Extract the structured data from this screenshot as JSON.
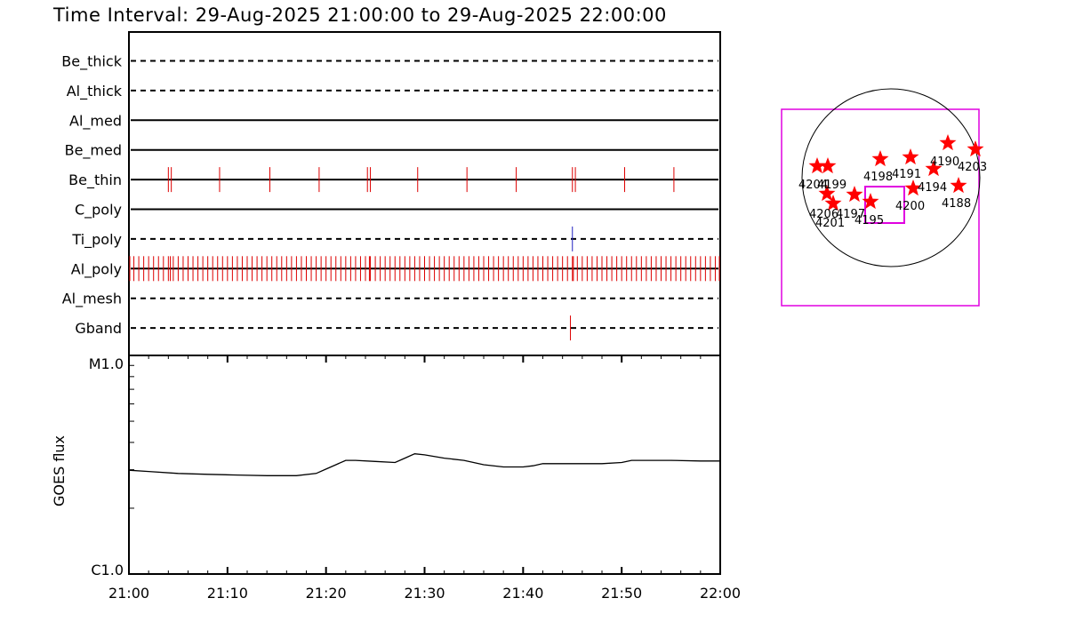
{
  "title": "Time Interval: 29-Aug-2025 21:00:00 to 29-Aug-2025 22:00:00",
  "colors": {
    "event": "#dd0000",
    "ti_event": "#2020c0",
    "box": "#e000e0",
    "star": "#ff0000"
  },
  "chart_data": [
    {
      "type": "timeline",
      "time_range": [
        "21:00",
        "22:00"
      ],
      "filters": [
        {
          "name": "Be_thick",
          "style": "dashed",
          "events": [],
          "color": ""
        },
        {
          "name": "Al_thick",
          "style": "dashed",
          "events": [],
          "color": ""
        },
        {
          "name": "Al_med",
          "style": "solid",
          "events": [],
          "color": ""
        },
        {
          "name": "Be_med",
          "style": "solid",
          "events": [],
          "color": ""
        },
        {
          "name": "Be_thin",
          "style": "solid",
          "color": "#dd0000",
          "events": [
            4.0,
            4.3,
            9.2,
            14.3,
            19.3,
            24.2,
            24.5,
            29.3,
            34.3,
            39.3,
            45.0,
            45.3,
            50.3,
            55.3
          ]
        },
        {
          "name": "C_poly",
          "style": "solid",
          "events": [],
          "color": ""
        },
        {
          "name": "Ti_poly",
          "style": "dashed",
          "color": "#2020c0",
          "events": [
            45.0
          ]
        },
        {
          "name": "Al_poly",
          "style": "solid",
          "color": "#dd0000",
          "events_every_min": 0.5,
          "extra_events": [
            4.2,
            24.4,
            45.1
          ]
        },
        {
          "name": "Al_mesh",
          "style": "dashed",
          "events": [],
          "color": ""
        },
        {
          "name": "Gband",
          "style": "dashed",
          "color": "#dd0000",
          "events": [
            44.8
          ]
        }
      ]
    },
    {
      "type": "line",
      "ylabel": "GOES flux",
      "y_ticks": [
        "M1.0",
        "C1.0"
      ],
      "ylim_log": [
        -6,
        -5
      ],
      "xlim_min": [
        0,
        60
      ],
      "x_ticks": [
        "21:00",
        "21:10",
        "21:20",
        "21:30",
        "21:40",
        "21:50",
        "22:00"
      ],
      "x_min": [
        0,
        2,
        5,
        8,
        11,
        14,
        17,
        19,
        20,
        21,
        22,
        23,
        25,
        27,
        28,
        29,
        30,
        32,
        34,
        36,
        38,
        40,
        41,
        42,
        45,
        48,
        50,
        51,
        52,
        55,
        58,
        60
      ],
      "log_flux": [
        -5.525,
        -5.531,
        -5.54,
        -5.544,
        -5.547,
        -5.55,
        -5.55,
        -5.54,
        -5.52,
        -5.5,
        -5.48,
        -5.48,
        -5.485,
        -5.49,
        -5.47,
        -5.45,
        -5.455,
        -5.47,
        -5.48,
        -5.5,
        -5.51,
        -5.51,
        -5.505,
        -5.495,
        -5.495,
        -5.495,
        -5.49,
        -5.48,
        -5.48,
        -5.48,
        -5.483,
        -5.483
      ]
    },
    {
      "type": "scatter",
      "note": "sun disk",
      "points": [
        {
          "label": "4188",
          "x": 0.84,
          "y": 0.32
        },
        {
          "label": "4190",
          "x": 0.74,
          "y": 0.52
        },
        {
          "label": "4191",
          "x": 0.53,
          "y": 0.44
        },
        {
          "label": "4194",
          "x": 0.6,
          "y": 0.37
        },
        {
          "label": "4195",
          "x": -0.27,
          "y": 0.2
        },
        {
          "label": "4197",
          "x": -0.46,
          "y": 0.24
        },
        {
          "label": "4198",
          "x": 0.13,
          "y": 0.43
        },
        {
          "label": "4199",
          "x": -0.88,
          "y": 0.39
        },
        {
          "label": "4200",
          "x": 0.3,
          "y": 0.31
        },
        {
          "label": "4201",
          "x": -0.71,
          "y": 0.2
        },
        {
          "label": "4203",
          "x": 1.2,
          "y": 0.48
        },
        {
          "label": "4204",
          "x": -0.8,
          "y": 0.23
        },
        {
          "label": "4206",
          "x": -0.58,
          "y": 0.26
        }
      ],
      "labels_text": [
        "4204",
        "4199",
        "4206",
        "4201",
        "4197",
        "4195",
        "4198",
        "4191",
        "4190",
        "4203",
        "4194",
        "4200",
        "4188"
      ]
    }
  ]
}
